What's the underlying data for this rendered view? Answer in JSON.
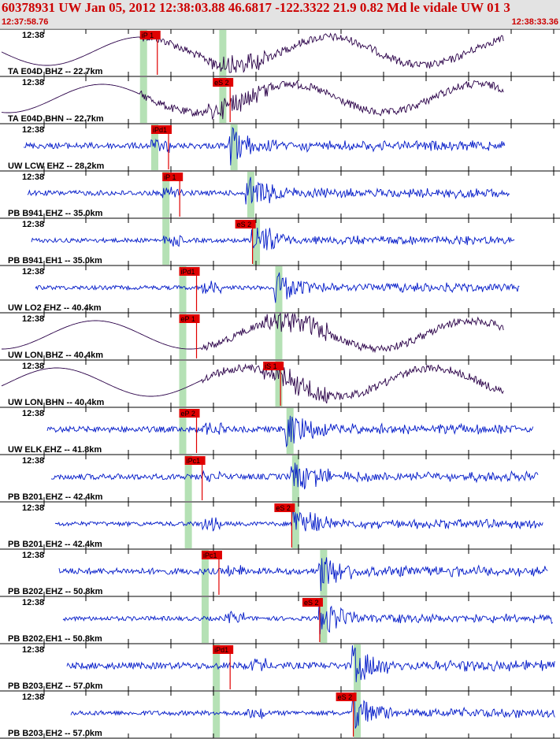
{
  "header": {
    "title": "60378931 UW Jan 05, 2012 12:38:03.88   46.6817 -122.3322 21.9 0.82 Md le vidale UW 01   3",
    "time_start": "12:37:58.76",
    "time_end": "12:38:33.36"
  },
  "colors": {
    "header_text": "#cc0000",
    "trace_bb": "#2a0048",
    "trace_sp": "#0018c8",
    "pick": "#e00000",
    "window": "#a8dca8"
  },
  "traces": [
    {
      "tick_label": "12:38",
      "label": "TA E04D BHZ -- 22.7km",
      "kind": "bb",
      "pick": "iP 1",
      "pick_t": 0.25,
      "window_t": 0.25,
      "arrival_t": 0.4,
      "quiet": 0.25,
      "noise": 0.08
    },
    {
      "tick_label": "12:38",
      "label": "TA E04D BHN -- 22.7km",
      "kind": "bb",
      "pick": "eS 2",
      "pick_t": 0.38,
      "window_t": 0.25,
      "arrival_t": 0.4,
      "quiet": 0.25,
      "noise": 0.08
    },
    {
      "tick_label": "12:38",
      "label": "UW LCW EHZ -- 28.2km",
      "kind": "sp",
      "pick": "iPd1",
      "pick_t": 0.27,
      "window_t": 0.27,
      "arrival_t": 0.42,
      "quiet": 0.27,
      "noise": 0.15
    },
    {
      "tick_label": "12:38",
      "label": "PB B941 EHZ -- 35.0km",
      "kind": "sp",
      "pick": "iP 1",
      "pick_t": 0.29,
      "window_t": 0.29,
      "arrival_t": 0.45,
      "quiet": 0.29,
      "noise": 0.1
    },
    {
      "tick_label": "12:38",
      "label": "PB B941 EH1 -- 35.0km",
      "kind": "sp",
      "pick": "eS 2",
      "pick_t": 0.42,
      "window_t": 0.29,
      "arrival_t": 0.46,
      "quiet": 0.29,
      "noise": 0.06
    },
    {
      "tick_label": "12:38",
      "label": "UW LO2 EHZ -- 40.4km",
      "kind": "sp",
      "pick": "iPd1",
      "pick_t": 0.32,
      "window_t": 0.32,
      "arrival_t": 0.5,
      "quiet": 0.36,
      "noise": 0.05
    },
    {
      "tick_label": "12:38",
      "label": "UW LON BHZ -- 40.4km",
      "kind": "bb",
      "pick": "eP 1",
      "pick_t": 0.32,
      "window_t": 0.32,
      "arrival_t": 0.5,
      "quiet": 0.36,
      "noise": 0.08
    },
    {
      "tick_label": "12:38",
      "label": "UW LON BHN -- 40.4km",
      "kind": "bb",
      "pick": "iS 1",
      "pick_t": 0.47,
      "window_t": 0.32,
      "arrival_t": 0.5,
      "quiet": 0.36,
      "noise": 0.08
    },
    {
      "tick_label": "12:38",
      "label": "UW ELK EHZ -- 41.8km",
      "kind": "sp",
      "pick": "eP 2",
      "pick_t": 0.32,
      "window_t": 0.32,
      "arrival_t": 0.52,
      "quiet": 0.36,
      "noise": 0.14
    },
    {
      "tick_label": "12:38",
      "label": "PB B201 EHZ -- 42.4km",
      "kind": "sp",
      "pick": "iPc1",
      "pick_t": 0.33,
      "window_t": 0.33,
      "arrival_t": 0.53,
      "quiet": 0.36,
      "noise": 0.14
    },
    {
      "tick_label": "12:38",
      "label": "PB B201 EH2 -- 42.4km",
      "kind": "sp",
      "pick": "eS 2",
      "pick_t": 0.49,
      "window_t": 0.33,
      "arrival_t": 0.53,
      "quiet": 0.36,
      "noise": 0.06
    },
    {
      "tick_label": "12:38",
      "label": "PB B202 EHZ -- 50.8km",
      "kind": "sp",
      "pick": "iPc1",
      "pick_t": 0.36,
      "window_t": 0.36,
      "arrival_t": 0.58,
      "quiet": 0.4,
      "noise": 0.16
    },
    {
      "tick_label": "12:38",
      "label": "PB B202 EH1 -- 50.8km",
      "kind": "sp",
      "pick": "eS 2",
      "pick_t": 0.54,
      "window_t": 0.36,
      "arrival_t": 0.58,
      "quiet": 0.4,
      "noise": 0.06
    },
    {
      "tick_label": "12:38",
      "label": "PB B203 EHZ -- 57.0km",
      "kind": "sp",
      "pick": "iPd1",
      "pick_t": 0.38,
      "window_t": 0.38,
      "arrival_t": 0.64,
      "quiet": 0.44,
      "noise": 0.18
    },
    {
      "tick_label": "12:38",
      "label": "PB B203 EH2 -- 57.0km",
      "kind": "sp",
      "pick": "eS 2",
      "pick_t": 0.6,
      "window_t": 0.38,
      "arrival_t": 0.64,
      "quiet": 0.44,
      "noise": 0.08
    }
  ]
}
